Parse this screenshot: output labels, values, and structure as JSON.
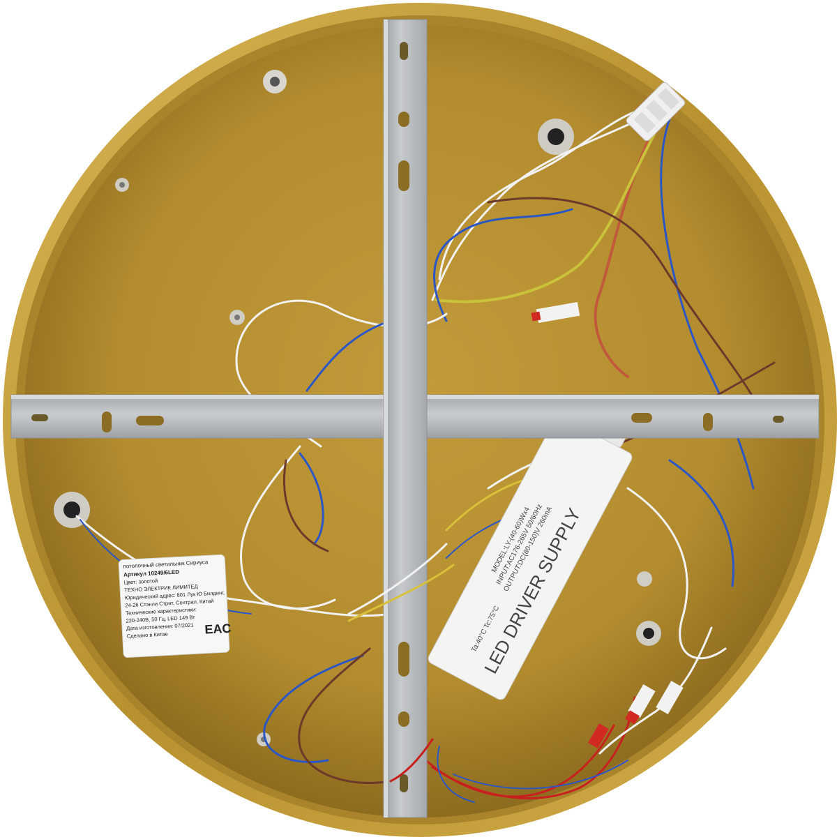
{
  "label": {
    "lines": [
      "потолочный светильник Сириуса",
      "Артикул 10249/6LED",
      "Цвет: золотой",
      "ТЕХНО ЭЛЕКТРИК ЛИМИТЕД",
      "Юридический адрес: 801 Лук Ю Билдинг,",
      "24-26 Стэнли Стрит, Сентрал, Китай",
      "Технические характеристики:",
      "220-240В, 50 Гц, LED 149 Вт",
      "Дата изготовления: 07/2021",
      "Сделано в Китае"
    ],
    "mark": "EAC"
  },
  "driver": {
    "title": "LED DRIVER SUPPLY",
    "model": "MODEL:LY-(40-60)Wx4",
    "input": "INPUT:AC176-265V 50/60Hz",
    "output": "OUTPUT:DC(80-150)V 260mA",
    "temp": "Ta:40°C   Tc:75°C"
  },
  "colors": {
    "gold": "#b8922f",
    "gold_dark": "#8a6a1c",
    "rim": "#c9a443",
    "bracket": "#b9bcbf",
    "wire_white": "#f2f2f2",
    "wire_blue": "#2a56c6",
    "wire_brown": "#6b3a2a",
    "wire_red": "#c8201e",
    "wire_yg": "#c9c23a"
  }
}
